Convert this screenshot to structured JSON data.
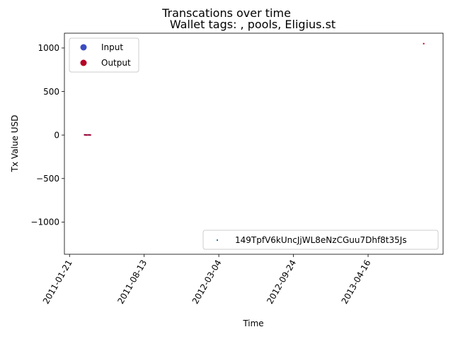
{
  "chart_data": {
    "type": "scatter",
    "suptitle": "Transcations over time",
    "title": "Wallet tags: , pools, Eligius.st",
    "xlabel": "Time",
    "ylabel": "Tx Value USD",
    "xlim": [
      "2011-01-07",
      "2013-11-07"
    ],
    "ylim": [
      -1370,
      1170
    ],
    "x_ticks": [
      "2011-01-21",
      "2011-08-13",
      "2012-03-04",
      "2012-09-24",
      "2013-04-16"
    ],
    "y_ticks": [
      1000,
      500,
      0,
      -500,
      -1000
    ],
    "y_tick_labels": [
      "1000",
      "500",
      "0",
      "−500",
      "−1000"
    ],
    "grid": false,
    "legend_class": {
      "placement": "upper-left",
      "entries": [
        {
          "label": "Input",
          "color": "#3b4cc0"
        },
        {
          "label": "Output",
          "color": "#b40426"
        }
      ]
    },
    "legend_wallet": {
      "placement": "lower-right",
      "entries": [
        {
          "label": "149TpfV6kUncJjWL8eNzCGuu7Dhf8t35Js",
          "color": "#1f77b4"
        }
      ]
    },
    "series": [
      {
        "name": "Input",
        "color": "#3b4cc0",
        "points": [
          {
            "x": "2011-03-03",
            "y": 3
          },
          {
            "x": "2011-03-05",
            "y": 1
          },
          {
            "x": "2011-03-07",
            "y": 2
          },
          {
            "x": "2011-03-09",
            "y": 0
          },
          {
            "x": "2011-03-11",
            "y": 1
          },
          {
            "x": "2011-03-13",
            "y": 0
          }
        ]
      },
      {
        "name": "Output",
        "color": "#b40426",
        "points": [
          {
            "x": "2011-03-04",
            "y": 1
          },
          {
            "x": "2011-03-08",
            "y": 0
          },
          {
            "x": "2011-03-15",
            "y": 2
          },
          {
            "x": "2011-03-17",
            "y": 0
          },
          {
            "x": "2011-03-19",
            "y": 0
          },
          {
            "x": "2013-09-15",
            "y": 1050
          }
        ]
      }
    ]
  }
}
